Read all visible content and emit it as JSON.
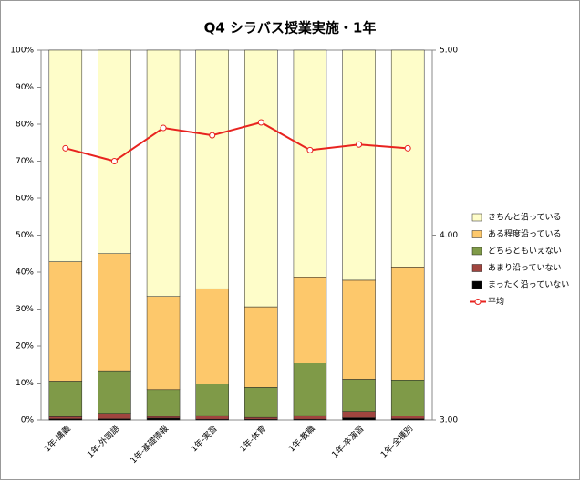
{
  "chart_data": {
    "type": "stacked_bar_line",
    "title": "Q4 シラバス授業実施・1年",
    "categories": [
      "1年-講義",
      "1年-外国語",
      "1年-基礎情報",
      "1年-実習",
      "1年-体育",
      "1年-教職",
      "1年-卒演習",
      "1年-全種別"
    ],
    "series": [
      {
        "name": "まったく沿っていない",
        "color": "#000000",
        "values": [
          0.3,
          0.3,
          0.5,
          0.2,
          0.2,
          0.2,
          0.6,
          0.3
        ]
      },
      {
        "name": "あまり沿っていない",
        "color": "#a0453f",
        "values": [
          0.6,
          1.5,
          0.5,
          1.0,
          0.5,
          1.0,
          1.7,
          0.8
        ]
      },
      {
        "name": "どちらともいえない",
        "color": "#7f9a48",
        "values": [
          9.6,
          11.5,
          7.2,
          8.6,
          8.1,
          14.2,
          8.7,
          9.7
        ]
      },
      {
        "name": "ある程度沿っている",
        "color": "#fdc86b",
        "values": [
          32.3,
          31.7,
          25.2,
          25.7,
          21.8,
          23.3,
          26.8,
          30.6
        ]
      },
      {
        "name": "きちんと沿っている",
        "color": "#fefdc9",
        "values": [
          57.2,
          55.0,
          66.6,
          64.5,
          69.4,
          61.3,
          62.2,
          58.6
        ]
      },
      {
        "name": "平均",
        "color": "#e8231f",
        "axis": "y2",
        "values": [
          4.47,
          4.4,
          4.58,
          4.54,
          4.61,
          4.46,
          4.49,
          4.47
        ]
      }
    ],
    "ylim": [
      0,
      100
    ],
    "yticks": [
      {
        "value": 0,
        "label": "0%"
      },
      {
        "value": 10,
        "label": "10%"
      },
      {
        "value": 20,
        "label": "20%"
      },
      {
        "value": 30,
        "label": "30%"
      },
      {
        "value": 40,
        "label": "40%"
      },
      {
        "value": 50,
        "label": "50%"
      },
      {
        "value": 60,
        "label": "60%"
      },
      {
        "value": 70,
        "label": "70%"
      },
      {
        "value": 80,
        "label": "80%"
      },
      {
        "value": 90,
        "label": "90%"
      },
      {
        "value": 100,
        "label": "100%"
      }
    ],
    "y2lim": [
      3,
      5
    ],
    "y2ticks": [
      {
        "value": 3,
        "label": "3.00"
      },
      {
        "value": 4,
        "label": "4.00"
      },
      {
        "value": 5,
        "label": "5.00"
      }
    ],
    "legend": "right"
  }
}
